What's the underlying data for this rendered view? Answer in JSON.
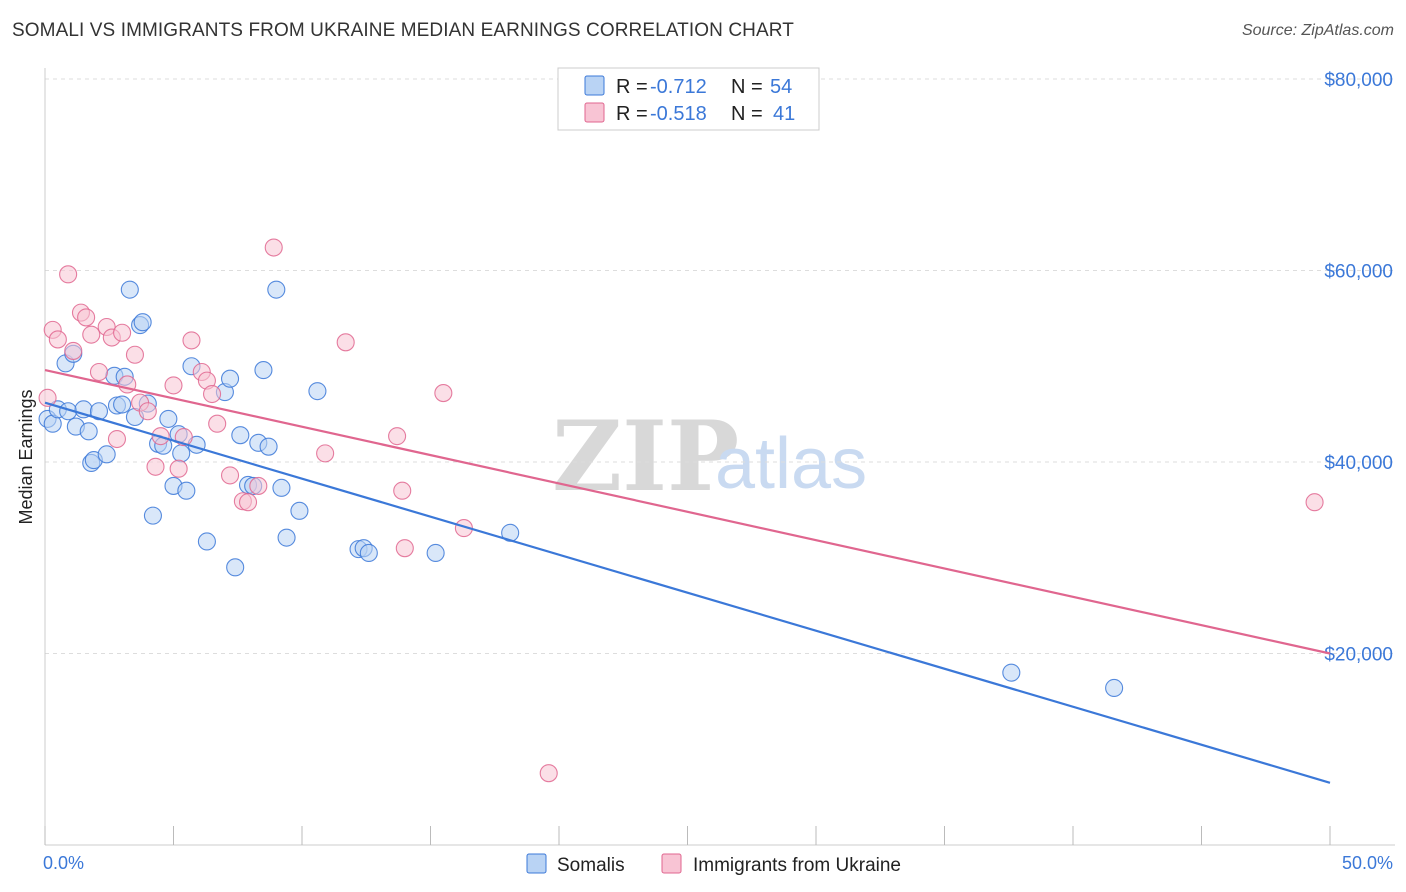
{
  "title": "SOMALI VS IMMIGRANTS FROM UKRAINE MEDIAN EARNINGS CORRELATION CHART",
  "source": "Source: ZipAtlas.com",
  "watermark": {
    "part1": "ZIP",
    "part2": "atlas"
  },
  "colors": {
    "somali": "#3b78d8",
    "somali_fill": "#b9d3f4",
    "ukraine": "#e0668f",
    "ukraine_fill": "#f8c4d4",
    "tick_text": "#3b78d8",
    "grid": "#dddddd"
  },
  "legend": {
    "rows": [
      {
        "r_label": "R =",
        "r_value": "-0.712",
        "n_label": "N =",
        "n_value": "54"
      },
      {
        "r_label": "R =",
        "r_value": "-0.518",
        "n_label": "N =",
        "n_value": "41"
      }
    ]
  },
  "bottom_legend": [
    "Somalis",
    "Immigrants from Ukraine"
  ],
  "chart_data": {
    "type": "scatter",
    "title": "SOMALI VS IMMIGRANTS FROM UKRAINE MEDIAN EARNINGS CORRELATION CHART",
    "xlabel": "",
    "ylabel": "Median Earnings",
    "xlim": [
      0,
      50
    ],
    "ylim": [
      0,
      82000
    ],
    "x_tick_labels": [
      "0.0%",
      "50.0%"
    ],
    "y_ticks": [
      20000,
      40000,
      60000,
      80000
    ],
    "y_tick_labels": [
      "$20,000",
      "$40,000",
      "$60,000",
      "$80,000"
    ],
    "grid": "horizontal dashed",
    "legend_position": "top-center",
    "series": [
      {
        "name": "Somalis",
        "color": "#3b78d8",
        "r": -0.712,
        "n": 54,
        "trend": [
          [
            0,
            46200
          ],
          [
            50,
            6500
          ]
        ],
        "points": [
          [
            0.1,
            44500
          ],
          [
            0.3,
            44000
          ],
          [
            0.5,
            45500
          ],
          [
            0.8,
            50300
          ],
          [
            0.9,
            45300
          ],
          [
            1.1,
            51300
          ],
          [
            1.2,
            43700
          ],
          [
            1.5,
            45500
          ],
          [
            1.7,
            43200
          ],
          [
            1.8,
            39900
          ],
          [
            1.9,
            40200
          ],
          [
            2.1,
            45300
          ],
          [
            2.4,
            40800
          ],
          [
            2.7,
            49000
          ],
          [
            2.8,
            45900
          ],
          [
            3.0,
            46000
          ],
          [
            3.1,
            48900
          ],
          [
            3.3,
            58000
          ],
          [
            3.5,
            44700
          ],
          [
            3.7,
            54300
          ],
          [
            3.8,
            54600
          ],
          [
            4.0,
            46100
          ],
          [
            4.2,
            34400
          ],
          [
            4.4,
            41900
          ],
          [
            4.6,
            41700
          ],
          [
            4.8,
            44500
          ],
          [
            5.0,
            37500
          ],
          [
            5.2,
            42900
          ],
          [
            5.3,
            40900
          ],
          [
            5.5,
            37000
          ],
          [
            5.7,
            50000
          ],
          [
            5.9,
            41800
          ],
          [
            6.3,
            31700
          ],
          [
            7.0,
            47300
          ],
          [
            7.2,
            48700
          ],
          [
            7.4,
            29000
          ],
          [
            7.6,
            42800
          ],
          [
            7.9,
            37600
          ],
          [
            8.1,
            37500
          ],
          [
            8.3,
            42000
          ],
          [
            8.5,
            49600
          ],
          [
            8.7,
            41600
          ],
          [
            9.0,
            58000
          ],
          [
            9.2,
            37300
          ],
          [
            9.4,
            32100
          ],
          [
            9.9,
            34900
          ],
          [
            10.6,
            47400
          ],
          [
            12.2,
            30900
          ],
          [
            12.4,
            31000
          ],
          [
            12.6,
            30500
          ],
          [
            15.2,
            30500
          ],
          [
            18.1,
            32600
          ],
          [
            37.6,
            18000
          ],
          [
            41.6,
            16400
          ]
        ]
      },
      {
        "name": "Immigrants from Ukraine",
        "color": "#e0668f",
        "r": -0.518,
        "n": 41,
        "trend": [
          [
            0,
            49600
          ],
          [
            50,
            20000
          ]
        ],
        "points": [
          [
            0.1,
            46700
          ],
          [
            0.3,
            53800
          ],
          [
            0.5,
            52800
          ],
          [
            0.9,
            59600
          ],
          [
            1.1,
            51600
          ],
          [
            1.4,
            55600
          ],
          [
            1.6,
            55100
          ],
          [
            1.8,
            53300
          ],
          [
            2.1,
            49400
          ],
          [
            2.4,
            54100
          ],
          [
            2.6,
            53000
          ],
          [
            2.8,
            42400
          ],
          [
            3.0,
            53500
          ],
          [
            3.2,
            48100
          ],
          [
            3.5,
            51200
          ],
          [
            3.7,
            46200
          ],
          [
            4.0,
            45300
          ],
          [
            4.3,
            39500
          ],
          [
            4.5,
            42700
          ],
          [
            5.0,
            48000
          ],
          [
            5.2,
            39300
          ],
          [
            5.4,
            42600
          ],
          [
            5.7,
            52700
          ],
          [
            6.1,
            49400
          ],
          [
            6.3,
            48500
          ],
          [
            6.5,
            47100
          ],
          [
            6.7,
            44000
          ],
          [
            7.2,
            38600
          ],
          [
            7.7,
            35900
          ],
          [
            7.9,
            35800
          ],
          [
            8.3,
            37500
          ],
          [
            8.9,
            62400
          ],
          [
            10.9,
            40900
          ],
          [
            11.7,
            52500
          ],
          [
            13.7,
            42700
          ],
          [
            13.9,
            37000
          ],
          [
            14.0,
            31000
          ],
          [
            15.5,
            47200
          ],
          [
            16.3,
            33100
          ],
          [
            19.6,
            7500
          ],
          [
            49.4,
            35800
          ]
        ]
      }
    ]
  }
}
